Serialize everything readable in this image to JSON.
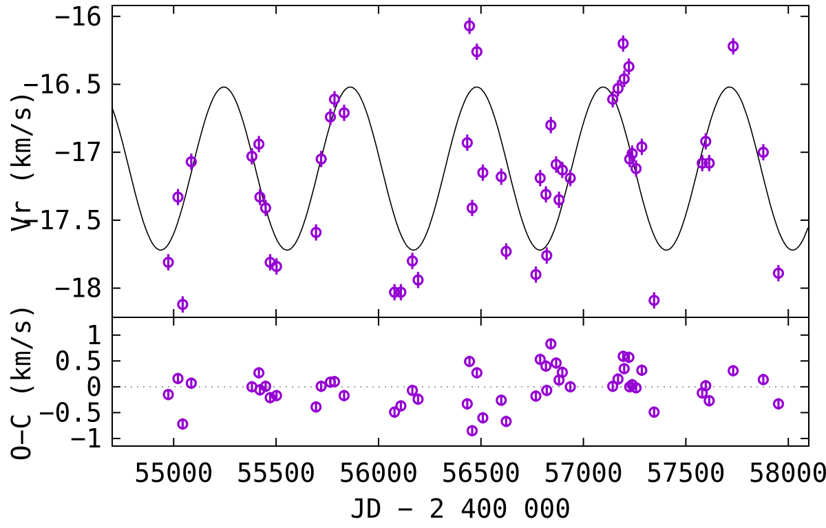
{
  "chart_data": {
    "type": "scatter",
    "description": "Radial velocity curve with sinusoidal fit (top) and O-C residuals (bottom)",
    "marker_color": "#9400d3",
    "curve_color": "#000000",
    "background_color": "#ffffff",
    "x_axis": {
      "label": "JD − 2 400 000",
      "range": [
        54700,
        58100
      ],
      "ticks": [
        55000,
        55500,
        56000,
        56500,
        57000,
        57500,
        58000
      ],
      "tick_labels": [
        "55000",
        "55500",
        "56000",
        "56500",
        "57000",
        "57500",
        "58000"
      ]
    },
    "top_panel": {
      "label": "Vr (km/s)",
      "range": [
        -18.215,
        -15.92
      ],
      "ticks": [
        -16,
        -16.5,
        -17,
        -17.5,
        -18
      ],
      "tick_labels": [
        "−16",
        "−16.5",
        "−17",
        "−17.5",
        "−18"
      ],
      "grid": false
    },
    "bottom_panel": {
      "label": "O−C (km/s)",
      "range": [
        -1.147,
        1.343
      ],
      "ticks": [
        1,
        0.5,
        0,
        -0.5,
        -1
      ],
      "tick_labels": [
        "1",
        "0.5",
        "0",
        "−0.5",
        "−1"
      ],
      "zero_line": true,
      "zero_line_color": "#808080"
    },
    "fit_curve": {
      "shape": "sine",
      "mean_kms": -17.12,
      "amplitude_kms": 0.6,
      "period_days": 617,
      "peak_jd": 55245
    },
    "vr_err_kms": 0.06,
    "oc_err_kms": 0.11,
    "columns": [
      "jd",
      "vr_kms",
      "oc_kms"
    ],
    "points": [
      [
        54974,
        -17.81,
        -0.15
      ],
      [
        55021,
        -17.33,
        0.16
      ],
      [
        55044,
        -18.12,
        -0.72
      ],
      [
        55086,
        -17.07,
        0.07
      ],
      [
        55382,
        -17.03,
        0.0
      ],
      [
        55416,
        -16.94,
        0.27
      ],
      [
        55421,
        -17.33,
        -0.06
      ],
      [
        55449,
        -17.41,
        0.01
      ],
      [
        55471,
        -17.81,
        -0.21
      ],
      [
        55502,
        -17.84,
        -0.17
      ],
      [
        55695,
        -17.59,
        -0.39
      ],
      [
        55720,
        -17.05,
        0.01
      ],
      [
        55765,
        -16.74,
        0.09
      ],
      [
        55785,
        -16.61,
        0.1
      ],
      [
        55832,
        -16.71,
        -0.17
      ],
      [
        56078,
        -18.03,
        -0.49
      ],
      [
        56109,
        -18.03,
        -0.37
      ],
      [
        56165,
        -17.8,
        -0.07
      ],
      [
        56193,
        -17.94,
        -0.24
      ],
      [
        56433,
        -16.93,
        -0.33
      ],
      [
        56444,
        -16.07,
        0.49
      ],
      [
        56457,
        -17.41,
        -0.85
      ],
      [
        56480,
        -16.26,
        0.27
      ],
      [
        56509,
        -17.15,
        -0.6
      ],
      [
        56599,
        -17.18,
        -0.26
      ],
      [
        56623,
        -17.73,
        -0.67
      ],
      [
        56768,
        -17.9,
        -0.18
      ],
      [
        56789,
        -17.19,
        0.53
      ],
      [
        56817,
        -17.31,
        0.4
      ],
      [
        56821,
        -17.76,
        -0.07
      ],
      [
        56841,
        -16.8,
        0.83
      ],
      [
        56867,
        -17.09,
        0.46
      ],
      [
        56881,
        -17.35,
        0.13
      ],
      [
        56897,
        -17.13,
        0.28
      ],
      [
        56936,
        -17.19,
        0.0
      ],
      [
        57143,
        -16.61,
        0.01
      ],
      [
        57169,
        -16.53,
        0.15
      ],
      [
        57194,
        -16.2,
        0.59
      ],
      [
        57199,
        -16.46,
        0.35
      ],
      [
        57222,
        -16.37,
        0.57
      ],
      [
        57226,
        -17.05,
        0.0
      ],
      [
        57238,
        -17.01,
        0.04
      ],
      [
        57257,
        -17.12,
        -0.02
      ],
      [
        57285,
        -16.96,
        0.32
      ],
      [
        57345,
        -18.09,
        -0.49
      ],
      [
        57580,
        -17.08,
        -0.12
      ],
      [
        57597,
        -16.92,
        0.02
      ],
      [
        57614,
        -17.08,
        -0.27
      ],
      [
        57731,
        -16.22,
        0.31
      ],
      [
        57878,
        -17.0,
        0.14
      ],
      [
        57952,
        -17.89,
        -0.33
      ]
    ]
  }
}
